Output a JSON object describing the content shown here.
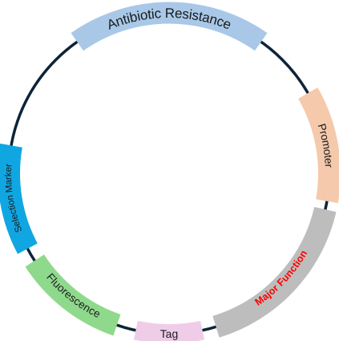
{
  "diagram": {
    "backbone_color": "#0d2438",
    "segments": [
      {
        "id": "antibiotic",
        "label": "Antibiotic Resistance",
        "color": "#a9c8e8",
        "text_color": "#1a1a1a",
        "bold": false
      },
      {
        "id": "promoter",
        "label": "Promoter",
        "color": "#f5c9ac",
        "text_color": "#1a1a1a",
        "bold": false
      },
      {
        "id": "major",
        "label": "Major Function",
        "color": "#bdbdbd",
        "text_color": "#ff0000",
        "bold": true
      },
      {
        "id": "tag",
        "label": "Tag",
        "color": "#efcde9",
        "text_color": "#1a1a1a",
        "bold": false
      },
      {
        "id": "fluorescence",
        "label": "Fluorescence",
        "color": "#8fd98c",
        "text_color": "#1a1a1a",
        "bold": false
      },
      {
        "id": "selection",
        "label": "Selection Marker",
        "color": "#10a6e2",
        "text_color": "#1a1a1a",
        "bold": false
      }
    ]
  }
}
